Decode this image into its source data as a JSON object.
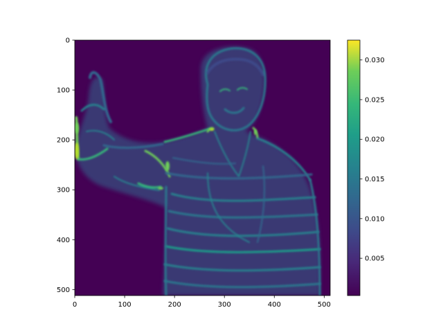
{
  "chart_data": {
    "type": "heatmap",
    "title": "",
    "xlabel": "",
    "ylabel": "",
    "image_width": 512,
    "image_height": 512,
    "xlim": [
      0,
      512
    ],
    "ylim": [
      512,
      0
    ],
    "x_ticks": [
      "0",
      "100",
      "200",
      "300",
      "400",
      "500"
    ],
    "y_ticks": [
      "0",
      "100",
      "200",
      "300",
      "400",
      "500"
    ],
    "x_tick_values": [
      0,
      100,
      200,
      300,
      400,
      500
    ],
    "y_tick_values": [
      0,
      100,
      200,
      300,
      400,
      500
    ],
    "colormap": "viridis",
    "colorbar": {
      "min": 0.0003,
      "max": 0.0325,
      "ticks": [
        "0.005",
        "0.010",
        "0.015",
        "0.020",
        "0.025",
        "0.030"
      ],
      "tick_values": [
        0.005,
        0.01,
        0.015,
        0.02,
        0.025,
        0.03
      ]
    },
    "grid": false,
    "content": "saliency-style map of a person giving a thumbs up, wearing a striped shirt",
    "colors": {
      "background_low": "#440154",
      "mid": "#3b528b",
      "teal": "#21918c",
      "green": "#5ec962",
      "high": "#fde725"
    }
  }
}
